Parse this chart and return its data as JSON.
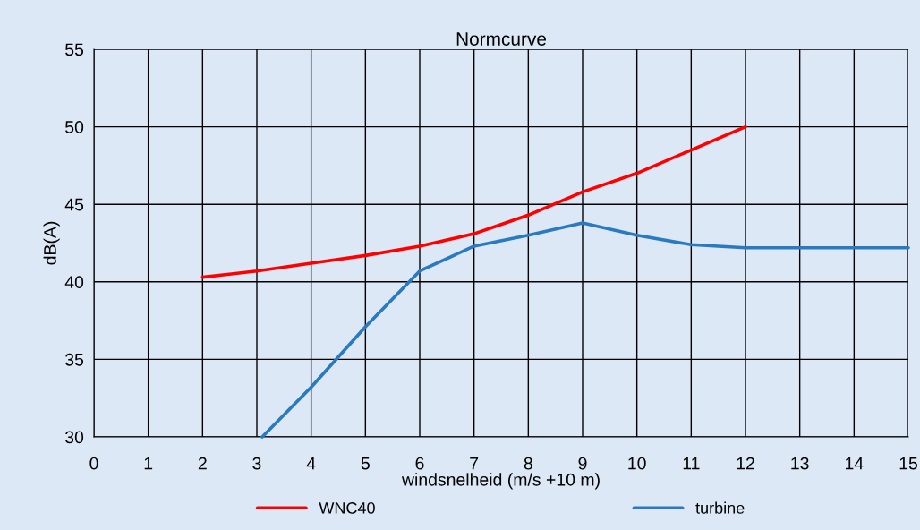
{
  "chart_data": {
    "type": "line",
    "title": "Normcurve",
    "xlabel": "windsnelheid (m/s +10 m)",
    "ylabel": "dB(A)",
    "xlim": [
      0,
      15
    ],
    "xticks": [
      0,
      1,
      2,
      3,
      4,
      5,
      6,
      7,
      8,
      9,
      10,
      11,
      12,
      13,
      14,
      15
    ],
    "ylim": [
      30,
      55
    ],
    "yticks": [
      30,
      35,
      40,
      45,
      50,
      55
    ],
    "grid": true,
    "legend": "bottom",
    "marker": "none",
    "line_style": "solid",
    "series": [
      {
        "name": "WNC40",
        "color": "#ff0000",
        "x": [
          2,
          3,
          4,
          5,
          6,
          7,
          8,
          9,
          10,
          11,
          12
        ],
        "values": [
          40.3,
          40.7,
          41.2,
          41.7,
          42.3,
          43.1,
          44.3,
          45.8,
          47.0,
          48.5,
          50.0
        ]
      },
      {
        "name": "turbine",
        "color": "#2a7abf",
        "x": [
          3.1,
          4,
          5,
          6,
          7,
          8,
          9,
          10,
          11,
          12,
          13,
          14,
          15
        ],
        "values": [
          30.0,
          33.2,
          37.1,
          40.7,
          42.3,
          43.0,
          43.8,
          43.0,
          42.4,
          42.2,
          42.2,
          42.2,
          42.2
        ]
      }
    ]
  }
}
